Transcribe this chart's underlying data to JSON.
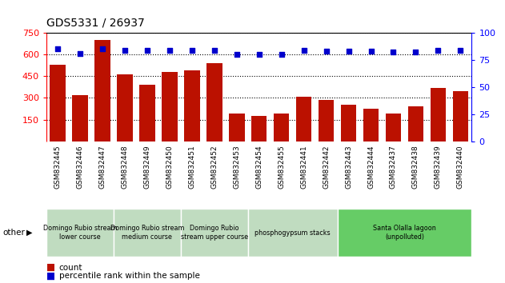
{
  "title": "GDS5331 / 26937",
  "samples": [
    "GSM832445",
    "GSM832446",
    "GSM832447",
    "GSM832448",
    "GSM832449",
    "GSM832450",
    "GSM832451",
    "GSM832452",
    "GSM832453",
    "GSM832454",
    "GSM832455",
    "GSM832441",
    "GSM832442",
    "GSM832443",
    "GSM832444",
    "GSM832437",
    "GSM832438",
    "GSM832439",
    "GSM832440"
  ],
  "counts": [
    530,
    320,
    700,
    460,
    390,
    480,
    490,
    540,
    195,
    175,
    195,
    310,
    285,
    255,
    225,
    195,
    240,
    370,
    345
  ],
  "percentiles": [
    85,
    81,
    85,
    84,
    84,
    84,
    84,
    84,
    80,
    80,
    80,
    84,
    83,
    83,
    83,
    82,
    82,
    84,
    84
  ],
  "ylim_left": [
    0,
    750
  ],
  "ylim_right": [
    0,
    100
  ],
  "yticks_left": [
    150,
    300,
    450,
    600,
    750
  ],
  "yticks_right": [
    0,
    25,
    50,
    75,
    100
  ],
  "gridlines_left": [
    150,
    300,
    450,
    600,
    750
  ],
  "bar_color": "#bb1100",
  "dot_color": "#0000cc",
  "groups": [
    {
      "label": "Domingo Rubio stream\nlower course",
      "start": 0,
      "end": 3,
      "color": "#c0dcc0"
    },
    {
      "label": "Domingo Rubio stream\nmedium course",
      "start": 3,
      "end": 6,
      "color": "#c0dcc0"
    },
    {
      "label": "Domingo Rubio\nstream upper course",
      "start": 6,
      "end": 9,
      "color": "#c0dcc0"
    },
    {
      "label": "phosphogypsum stacks",
      "start": 9,
      "end": 13,
      "color": "#c0dcc0"
    },
    {
      "label": "Santa Olalla lagoon\n(unpolluted)",
      "start": 13,
      "end": 19,
      "color": "#66cc66"
    }
  ],
  "legend_count_label": "count",
  "legend_pct_label": "percentile rank within the sample",
  "other_label": "other"
}
